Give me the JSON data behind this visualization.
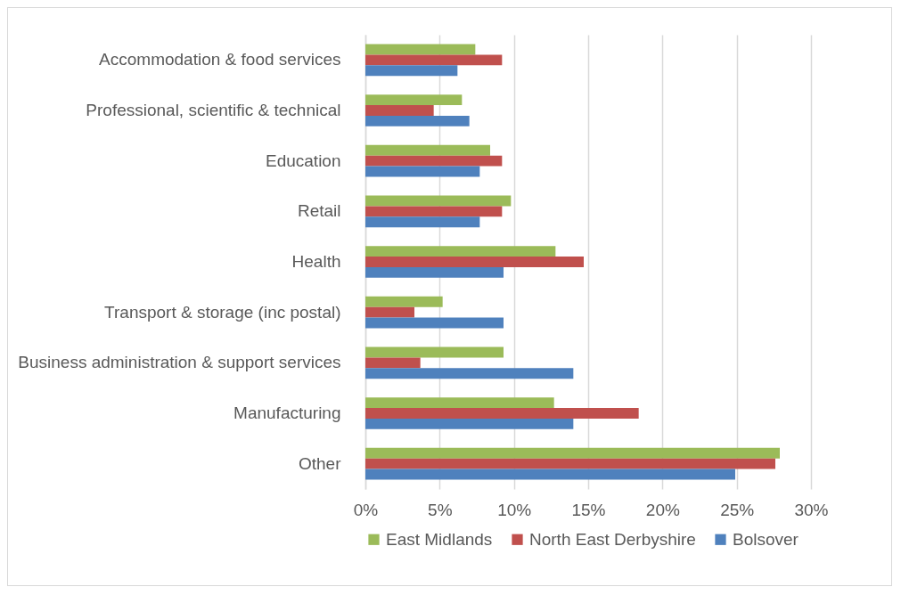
{
  "chart_data": {
    "type": "bar",
    "orientation": "horizontal",
    "categories": [
      "Accommodation & food services",
      "Professional, scientific & technical",
      "Education",
      "Retail",
      "Health",
      "Transport & storage (inc postal)",
      "Business administration & support services",
      "Manufacturing",
      "Other"
    ],
    "series": [
      {
        "name": "East Midlands",
        "color": "#9bbb59",
        "values": [
          7.4,
          6.5,
          8.4,
          9.8,
          12.8,
          5.2,
          9.3,
          12.7,
          27.9
        ]
      },
      {
        "name": "North East Derbyshire",
        "color": "#c0504d",
        "values": [
          9.2,
          4.6,
          9.2,
          9.2,
          14.7,
          3.3,
          3.7,
          18.4,
          27.6
        ]
      },
      {
        "name": "Bolsover",
        "color": "#4f81bd",
        "values": [
          6.2,
          7.0,
          7.7,
          7.7,
          9.3,
          9.3,
          14.0,
          14.0,
          24.9
        ]
      }
    ],
    "xlim": [
      0,
      30
    ],
    "xticks": [
      {
        "value": 0,
        "label": "0%"
      },
      {
        "value": 5,
        "label": "5%"
      },
      {
        "value": 10,
        "label": "10%"
      },
      {
        "value": 15,
        "label": "15%"
      },
      {
        "value": 20,
        "label": "20%"
      },
      {
        "value": 25,
        "label": "25%"
      },
      {
        "value": 30,
        "label": "30%"
      }
    ],
    "grid": "x",
    "legend": "bottom"
  }
}
